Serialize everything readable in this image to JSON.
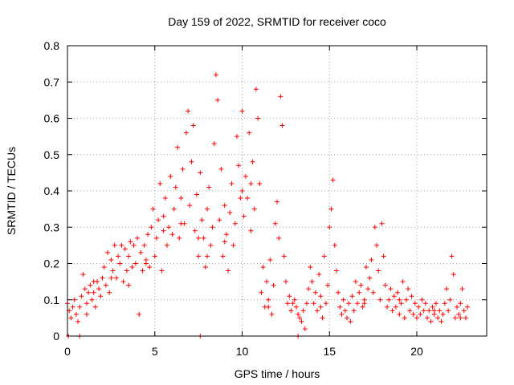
{
  "chart_data": {
    "type": "scatter",
    "title": "Day 159 of 2022, SRMTID for receiver coco",
    "xlabel": "GPS time / hours",
    "ylabel": "SRMTID / TECUs",
    "xlim": [
      0,
      24
    ],
    "ylim": [
      0,
      0.8
    ],
    "xticks": [
      0,
      5,
      10,
      15,
      20
    ],
    "yticks": [
      0,
      0.1,
      0.2,
      0.3,
      0.4,
      0.5,
      0.6,
      0.7,
      0.8
    ],
    "grid": true,
    "marker": "+",
    "color": "#ff0000",
    "series": [
      {
        "name": "SRMTID",
        "points": [
          [
            0.0,
            0.09
          ],
          [
            0.1,
            0.07
          ],
          [
            0.2,
            0.05
          ],
          [
            0.3,
            0.08
          ],
          [
            0.4,
            0.1
          ],
          [
            0.5,
            0.06
          ],
          [
            0.6,
            0.04
          ],
          [
            0.7,
            0.08
          ],
          [
            0.8,
            0.11
          ],
          [
            0.9,
            0.17
          ],
          [
            1.0,
            0.13
          ],
          [
            1.1,
            0.09
          ],
          [
            1.2,
            0.12
          ],
          [
            1.3,
            0.14
          ],
          [
            1.4,
            0.1
          ],
          [
            1.5,
            0.12
          ],
          [
            1.6,
            0.08
          ],
          [
            1.7,
            0.15
          ],
          [
            1.8,
            0.13
          ],
          [
            1.9,
            0.11
          ],
          [
            2.0,
            0.16
          ],
          [
            2.1,
            0.19
          ],
          [
            2.2,
            0.14
          ],
          [
            2.3,
            0.23
          ],
          [
            2.4,
            0.12
          ],
          [
            2.5,
            0.21
          ],
          [
            2.6,
            0.18
          ],
          [
            2.7,
            0.25
          ],
          [
            2.8,
            0.16
          ],
          [
            2.9,
            0.22
          ],
          [
            3.0,
            0.2
          ],
          [
            3.1,
            0.25
          ],
          [
            3.2,
            0.15
          ],
          [
            3.3,
            0.24
          ],
          [
            3.4,
            0.18
          ],
          [
            3.5,
            0.22
          ],
          [
            3.6,
            0.26
          ],
          [
            3.7,
            0.19
          ],
          [
            3.8,
            0.25
          ],
          [
            3.9,
            0.2
          ],
          [
            4.0,
            0.27
          ],
          [
            4.1,
            0.06
          ],
          [
            4.2,
            0.23
          ],
          [
            4.3,
            0.18
          ],
          [
            4.4,
            0.25
          ],
          [
            4.5,
            0.21
          ],
          [
            4.6,
            0.28
          ],
          [
            4.7,
            0.19
          ],
          [
            4.8,
            0.3
          ],
          [
            4.9,
            0.35
          ],
          [
            5.0,
            0.22
          ],
          [
            5.1,
            0.27
          ],
          [
            5.2,
            0.32
          ],
          [
            5.3,
            0.42
          ],
          [
            5.4,
            0.18
          ],
          [
            5.5,
            0.33
          ],
          [
            5.6,
            0.38
          ],
          [
            5.7,
            0.25
          ],
          [
            5.8,
            0.3
          ],
          [
            5.9,
            0.44
          ],
          [
            6.0,
            0.28
          ],
          [
            6.1,
            0.35
          ],
          [
            6.2,
            0.41
          ],
          [
            6.3,
            0.52
          ],
          [
            6.4,
            0.27
          ],
          [
            6.5,
            0.38
          ],
          [
            6.6,
            0.46
          ],
          [
            6.7,
            0.31
          ],
          [
            6.8,
            0.56
          ],
          [
            6.9,
            0.62
          ],
          [
            7.0,
            0.36
          ],
          [
            7.1,
            0.48
          ],
          [
            7.2,
            0.58
          ],
          [
            7.3,
            0.29
          ],
          [
            7.4,
            0.39
          ],
          [
            7.5,
            0.22
          ],
          [
            7.6,
            0.45
          ],
          [
            7.7,
            0.32
          ],
          [
            7.8,
            0.27
          ],
          [
            7.9,
            0.19
          ],
          [
            8.0,
            0.35
          ],
          [
            8.1,
            0.41
          ],
          [
            8.2,
            0.25
          ],
          [
            8.3,
            0.3
          ],
          [
            8.4,
            0.53
          ],
          [
            8.5,
            0.72
          ],
          [
            8.6,
            0.65
          ],
          [
            8.7,
            0.32
          ],
          [
            8.8,
            0.46
          ],
          [
            8.9,
            0.22
          ],
          [
            9.0,
            0.36
          ],
          [
            9.1,
            0.28
          ],
          [
            9.2,
            0.18
          ],
          [
            9.3,
            0.34
          ],
          [
            9.4,
            0.42
          ],
          [
            9.5,
            0.25
          ],
          [
            9.6,
            0.31
          ],
          [
            9.7,
            0.55
          ],
          [
            9.8,
            0.47
          ],
          [
            9.9,
            0.38
          ],
          [
            10.0,
            0.62
          ],
          [
            10.1,
            0.33
          ],
          [
            10.2,
            0.44
          ],
          [
            10.3,
            0.38
          ],
          [
            10.4,
            0.56
          ],
          [
            10.5,
            0.29
          ],
          [
            10.6,
            0.48
          ],
          [
            10.7,
            0.35
          ],
          [
            10.8,
            0.68
          ],
          [
            10.9,
            0.6
          ],
          [
            11.0,
            0.42
          ],
          [
            11.1,
            0.12
          ],
          [
            11.2,
            0.19
          ],
          [
            11.3,
            0.08
          ],
          [
            11.4,
            0.15
          ],
          [
            11.5,
            0.1
          ],
          [
            11.6,
            0.21
          ],
          [
            11.7,
            0.06
          ],
          [
            11.8,
            0.14
          ],
          [
            11.9,
            0.31
          ],
          [
            12.0,
            0.37
          ],
          [
            12.1,
            0.27
          ],
          [
            12.2,
            0.66
          ],
          [
            12.3,
            0.58
          ],
          [
            12.4,
            0.22
          ],
          [
            12.5,
            0.15
          ],
          [
            12.6,
            0.09
          ],
          [
            12.7,
            0.11
          ],
          [
            12.8,
            0.07
          ],
          [
            12.9,
            0.09
          ],
          [
            13.0,
            0.1
          ],
          [
            13.1,
            0.08
          ],
          [
            13.2,
            0.06
          ],
          [
            13.3,
            0.05
          ],
          [
            13.4,
            0.04
          ],
          [
            13.5,
            0.07
          ],
          [
            13.6,
            0.02
          ],
          [
            13.7,
            0.09
          ],
          [
            13.8,
            0.13
          ],
          [
            13.9,
            0.19
          ],
          [
            14.0,
            0.15
          ],
          [
            14.1,
            0.09
          ],
          [
            14.2,
            0.12
          ],
          [
            14.3,
            0.07
          ],
          [
            14.4,
            0.17
          ],
          [
            14.5,
            0.11
          ],
          [
            14.6,
            0.05
          ],
          [
            14.7,
            0.22
          ],
          [
            14.8,
            0.09
          ],
          [
            14.9,
            0.14
          ],
          [
            15.0,
            0.3
          ],
          [
            15.1,
            0.35
          ],
          [
            15.2,
            0.43
          ],
          [
            15.3,
            0.25
          ],
          [
            15.4,
            0.18
          ],
          [
            15.5,
            0.12
          ],
          [
            15.6,
            0.08
          ],
          [
            15.7,
            0.06
          ],
          [
            15.8,
            0.1
          ],
          [
            15.9,
            0.07
          ],
          [
            16.0,
            0.05
          ],
          [
            16.1,
            0.09
          ],
          [
            16.2,
            0.04
          ],
          [
            16.3,
            0.11
          ],
          [
            16.4,
            0.07
          ],
          [
            16.5,
            0.15
          ],
          [
            16.6,
            0.09
          ],
          [
            16.7,
            0.12
          ],
          [
            16.8,
            0.14
          ],
          [
            16.9,
            0.08
          ],
          [
            17.0,
            0.1
          ],
          [
            17.1,
            0.19
          ],
          [
            17.2,
            0.13
          ],
          [
            17.3,
            0.16
          ],
          [
            17.4,
            0.21
          ],
          [
            17.5,
            0.12
          ],
          [
            17.6,
            0.3
          ],
          [
            17.7,
            0.25
          ],
          [
            17.8,
            0.18
          ],
          [
            17.9,
            0.1
          ],
          [
            18.0,
            0.31
          ],
          [
            18.1,
            0.22
          ],
          [
            18.2,
            0.14
          ],
          [
            18.3,
            0.08
          ],
          [
            18.4,
            0.1
          ],
          [
            18.5,
            0.13
          ],
          [
            18.6,
            0.07
          ],
          [
            18.7,
            0.11
          ],
          [
            18.8,
            0.08
          ],
          [
            18.9,
            0.12
          ],
          [
            19.0,
            0.06
          ],
          [
            19.1,
            0.09
          ],
          [
            19.2,
            0.15
          ],
          [
            19.3,
            0.05
          ],
          [
            19.4,
            0.1
          ],
          [
            19.5,
            0.13
          ],
          [
            19.6,
            0.07
          ],
          [
            19.7,
            0.11
          ],
          [
            19.8,
            0.06
          ],
          [
            19.9,
            0.09
          ],
          [
            20.0,
            0.05
          ],
          [
            20.1,
            0.08
          ],
          [
            20.2,
            0.06
          ],
          [
            20.3,
            0.1
          ],
          [
            20.4,
            0.07
          ],
          [
            20.5,
            0.09
          ],
          [
            20.6,
            0.05
          ],
          [
            20.7,
            0.07
          ],
          [
            20.8,
            0.04
          ],
          [
            20.9,
            0.08
          ],
          [
            21.0,
            0.06
          ],
          [
            21.1,
            0.09
          ],
          [
            21.2,
            0.05
          ],
          [
            21.3,
            0.07
          ],
          [
            21.4,
            0.04
          ],
          [
            21.5,
            0.06
          ],
          [
            21.6,
            0.09
          ],
          [
            21.7,
            0.13
          ],
          [
            21.8,
            0.07
          ],
          [
            21.9,
            0.1
          ],
          [
            22.0,
            0.22
          ],
          [
            22.1,
            0.17
          ],
          [
            22.2,
            0.05
          ],
          [
            22.3,
            0.08
          ],
          [
            22.4,
            0.06
          ],
          [
            22.5,
            0.09
          ],
          [
            22.6,
            0.13
          ],
          [
            22.7,
            0.07
          ],
          [
            22.8,
            0.05
          ],
          [
            22.9,
            0.08
          ],
          [
            1.1,
            0.06
          ],
          [
            1.5,
            0.15
          ],
          [
            2.5,
            0.16
          ],
          [
            3.5,
            0.14
          ],
          [
            4.5,
            0.2
          ],
          [
            5.5,
            0.29
          ],
          [
            6.5,
            0.31
          ],
          [
            7.5,
            0.27
          ],
          [
            8.0,
            0.22
          ],
          [
            9.0,
            0.26
          ],
          [
            10.0,
            0.4
          ],
          [
            10.5,
            0.42
          ],
          [
            11.5,
            0.08
          ],
          [
            14.5,
            0.08
          ],
          [
            17.0,
            0.09
          ],
          [
            19.0,
            0.1
          ],
          [
            21.0,
            0.07
          ],
          [
            22.5,
            0.05
          ],
          [
            0.05,
            0.0
          ],
          [
            0.7,
            0.0
          ],
          [
            7.6,
            0.0
          ],
          [
            13.2,
            0.0
          ]
        ]
      }
    ]
  }
}
